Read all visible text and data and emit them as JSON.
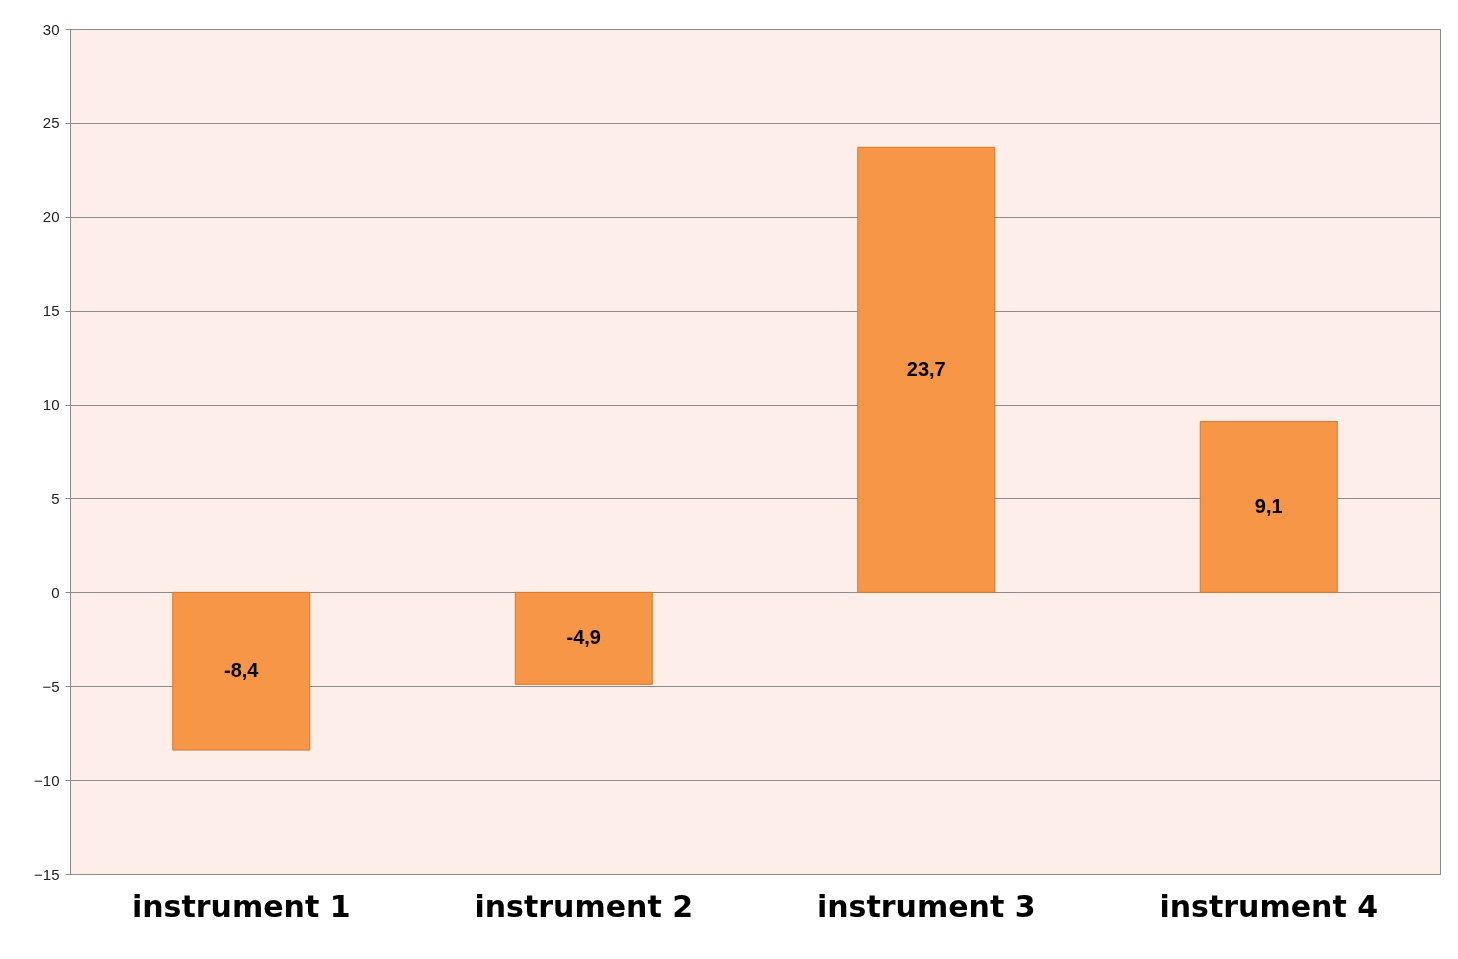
{
  "chart_data": {
    "type": "bar",
    "categories": [
      "instrument 1",
      "instrument 2",
      "instrument 3",
      "instrument 4"
    ],
    "values": [
      -8.4,
      -4.9,
      23.7,
      9.1
    ],
    "color": "#f79646",
    "value_labels": [
      "-8,4",
      "-4,9",
      "23,7",
      "9,1"
    ],
    "ylim": [
      -15,
      30
    ],
    "yticks": [
      -15,
      -10,
      -5,
      0,
      5,
      10,
      15,
      20,
      25,
      30
    ],
    "grid": "y"
  }
}
